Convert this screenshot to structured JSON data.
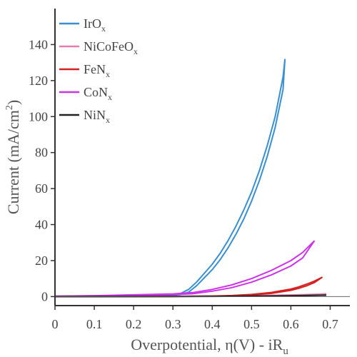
{
  "chart_data": {
    "type": "line",
    "title": "",
    "xlabel": {
      "main": "Overpotential, η(V) - iR",
      "sub": "u"
    },
    "ylabel": {
      "main": "Current (mA/cm",
      "sup": "2",
      "end": ")"
    },
    "xlim": [
      0,
      0.75
    ],
    "ylim": [
      -5,
      160
    ],
    "xticks": [
      0,
      0.1,
      0.2,
      0.3,
      0.4,
      0.5,
      0.6,
      0.7
    ],
    "xtick_labels": [
      "0",
      "0.1",
      "0.2",
      "0.3",
      "0.4",
      "0.5",
      "0.6",
      "0.7"
    ],
    "yticks": [
      0,
      20,
      40,
      60,
      80,
      100,
      120,
      140
    ],
    "ytick_labels": [
      "0",
      "20",
      "40",
      "60",
      "80",
      "100",
      "120",
      "140"
    ],
    "grid": false,
    "legend_position": "top-left",
    "series": [
      {
        "name": {
          "main": "IrO",
          "sub": "x"
        },
        "color": "#3a8fd0",
        "x": [
          0.0,
          0.1,
          0.2,
          0.3,
          0.32,
          0.34,
          0.36,
          0.38,
          0.4,
          0.42,
          0.44,
          0.46,
          0.48,
          0.5,
          0.52,
          0.54,
          0.56,
          0.58,
          0.585
        ],
        "y": [
          0.0,
          0.3,
          0.6,
          1.0,
          1.8,
          4.0,
          8.0,
          13.0,
          18.0,
          24.0,
          31.0,
          39.0,
          48.0,
          58.0,
          70.0,
          84.0,
          100.0,
          122.0,
          132.0
        ],
        "y_return": [
          0.0,
          0.2,
          0.4,
          0.8,
          1.2,
          2.5,
          6.0,
          10.5,
          15.0,
          20.5,
          27.0,
          34.5,
          43.0,
          53.0,
          64.5,
          78.0,
          94.0,
          115.0,
          132.0
        ]
      },
      {
        "name": {
          "main": "NiCoFeO",
          "sub": "x"
        },
        "color": "#e87ab0",
        "x": [
          0.0,
          0.1,
          0.2,
          0.3,
          0.4,
          0.5,
          0.6,
          0.65,
          0.69
        ],
        "y": [
          0.0,
          0.0,
          0.05,
          0.1,
          0.25,
          0.5,
          0.9,
          1.2,
          1.5
        ],
        "y_return": [
          0.0,
          0.0,
          0.03,
          0.08,
          0.2,
          0.4,
          0.75,
          1.05,
          1.5
        ]
      },
      {
        "name": {
          "main": "FeN",
          "sub": "x"
        },
        "color": "#d42020",
        "x": [
          0.0,
          0.1,
          0.2,
          0.3,
          0.4,
          0.45,
          0.5,
          0.55,
          0.6,
          0.62,
          0.64,
          0.66,
          0.68
        ],
        "y": [
          0.0,
          0.0,
          0.05,
          0.1,
          0.3,
          0.6,
          1.2,
          2.3,
          4.2,
          5.4,
          6.9,
          8.6,
          10.8
        ],
        "y_return": [
          0.0,
          0.0,
          0.03,
          0.08,
          0.2,
          0.45,
          0.9,
          1.8,
          3.5,
          4.6,
          6.0,
          7.8,
          10.8
        ]
      },
      {
        "name": {
          "main": "CoN",
          "sub": "x"
        },
        "color": "#cc33e6",
        "x": [
          0.0,
          0.1,
          0.2,
          0.3,
          0.35,
          0.4,
          0.45,
          0.5,
          0.55,
          0.6,
          0.63,
          0.66
        ],
        "y": [
          0.2,
          0.5,
          1.0,
          1.5,
          2.2,
          4.0,
          6.5,
          10.0,
          14.5,
          20.0,
          24.5,
          31.0
        ],
        "y_return": [
          0.2,
          0.4,
          0.7,
          1.1,
          1.6,
          3.0,
          5.0,
          8.0,
          12.0,
          17.0,
          21.5,
          31.0
        ]
      },
      {
        "name": {
          "main": "NiN",
          "sub": "x"
        },
        "color": "#222222",
        "x": [
          0.0,
          0.2,
          0.4,
          0.5,
          0.6,
          0.69
        ],
        "y": [
          0.0,
          0.05,
          0.15,
          0.3,
          0.5,
          0.8
        ],
        "y_return": [
          0.0,
          0.03,
          0.1,
          0.22,
          0.4,
          0.8
        ]
      }
    ]
  }
}
